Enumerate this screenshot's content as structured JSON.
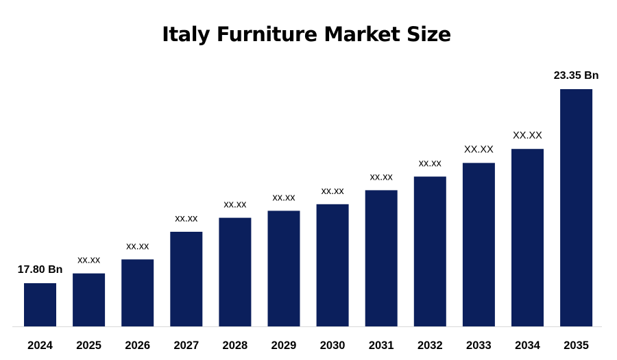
{
  "chart_data": {
    "type": "bar",
    "title": "Italy Furniture Market Size",
    "xlabel": "",
    "ylabel": "",
    "categories": [
      "2024",
      "2025",
      "2026",
      "2027",
      "2028",
      "2029",
      "2030",
      "2031",
      "2032",
      "2033",
      "2034",
      "2035"
    ],
    "values": [
      17.8,
      18.08,
      18.48,
      19.27,
      19.67,
      19.87,
      20.06,
      20.46,
      20.85,
      21.24,
      21.64,
      23.35
    ],
    "data_labels": [
      "17.80 Bn",
      "xx.xx",
      "xx.xx",
      "xx.xx",
      "xx.xx",
      "xx.xx",
      "xx.xx",
      "xx.xx",
      "xx.xx",
      "XX.XX",
      "XX.XX",
      "23.35 Bn"
    ],
    "emphasized_labels": [
      0,
      11
    ],
    "bar_color": "#0B1F5C",
    "axis_color": "#D9D9D9",
    "grid": false,
    "legend": "none"
  }
}
